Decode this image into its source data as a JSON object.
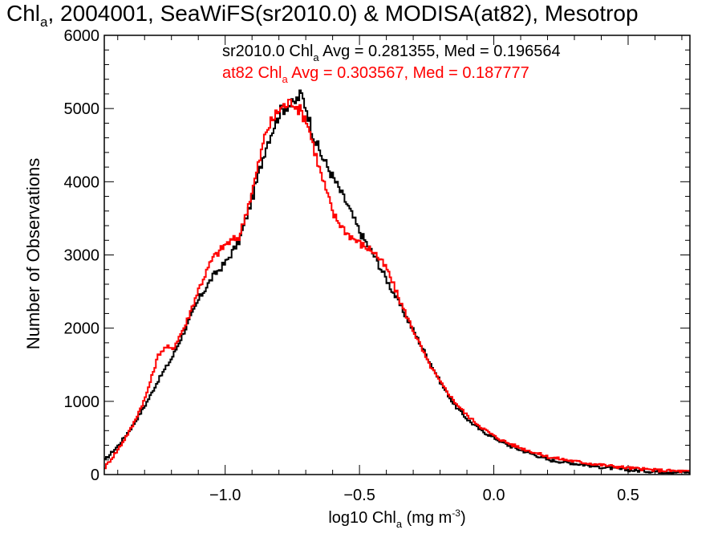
{
  "chart_data": {
    "type": "line",
    "title": {
      "main": "Chl",
      "sub": "a",
      "rest": ", 2004001, SeaWiFS(sr2010.0) & MODISA(at82), Mesotrop"
    },
    "xlabel": {
      "main": "log10 Chl",
      "sub": "a",
      "rest": " (mg m",
      "sup": "-3",
      "end": ")"
    },
    "ylabel": "Number of Observations",
    "xlim": [
      -1.45,
      0.73
    ],
    "ylim": [
      0,
      6000
    ],
    "x_ticks": [
      {
        "value": -1.0,
        "label": "−1.0"
      },
      {
        "value": -0.5,
        "label": "−0.5"
      },
      {
        "value": 0.0,
        "label": "0.0"
      },
      {
        "value": 0.5,
        "label": "0.5"
      }
    ],
    "y_ticks": [
      {
        "value": 0,
        "label": "0"
      },
      {
        "value": 1000,
        "label": "1000"
      },
      {
        "value": 2000,
        "label": "2000"
      },
      {
        "value": 3000,
        "label": "3000"
      },
      {
        "value": 4000,
        "label": "4000"
      },
      {
        "value": 5000,
        "label": "5000"
      },
      {
        "value": 6000,
        "label": "6000"
      }
    ],
    "grid": false,
    "legend_position": "top",
    "series": [
      {
        "name": "sr2010.0",
        "color": "#000000",
        "stats": {
          "main": "sr2010.0 Chl",
          "sub": "a",
          "rest": " Avg = 0.281355, Med = 0.196564"
        },
        "x": [
          -1.45,
          -1.4,
          -1.35,
          -1.3,
          -1.25,
          -1.2,
          -1.15,
          -1.1,
          -1.05,
          -1.0,
          -0.95,
          -0.9,
          -0.85,
          -0.8,
          -0.77,
          -0.75,
          -0.72,
          -0.7,
          -0.68,
          -0.65,
          -0.6,
          -0.55,
          -0.5,
          -0.45,
          -0.4,
          -0.35,
          -0.3,
          -0.25,
          -0.2,
          -0.15,
          -0.1,
          -0.05,
          0.0,
          0.05,
          0.1,
          0.15,
          0.2,
          0.3,
          0.4,
          0.5,
          0.6,
          0.73
        ],
        "y": [
          200,
          400,
          650,
          950,
          1300,
          1600,
          2000,
          2400,
          2700,
          2900,
          3200,
          3800,
          4500,
          4950,
          5050,
          5050,
          5200,
          5000,
          4700,
          4400,
          4050,
          3700,
          3300,
          3000,
          2650,
          2300,
          1950,
          1600,
          1250,
          950,
          750,
          600,
          500,
          400,
          330,
          270,
          200,
          150,
          100,
          60,
          40,
          30
        ]
      },
      {
        "name": "at82",
        "color": "#ff0000",
        "stats": {
          "main": "at82 Chl",
          "sub": "a",
          "rest": " Avg = 0.303567, Med = 0.187777"
        },
        "x": [
          -1.45,
          -1.4,
          -1.35,
          -1.3,
          -1.25,
          -1.22,
          -1.2,
          -1.15,
          -1.1,
          -1.05,
          -1.0,
          -0.95,
          -0.9,
          -0.85,
          -0.8,
          -0.75,
          -0.72,
          -0.7,
          -0.65,
          -0.6,
          -0.55,
          -0.5,
          -0.45,
          -0.4,
          -0.35,
          -0.3,
          -0.25,
          -0.2,
          -0.15,
          -0.1,
          -0.05,
          0.0,
          0.05,
          0.1,
          0.15,
          0.2,
          0.3,
          0.4,
          0.5,
          0.6,
          0.73
        ],
        "y": [
          100,
          350,
          650,
          1050,
          1650,
          1750,
          1700,
          2050,
          2550,
          2950,
          3150,
          3250,
          3900,
          4700,
          5000,
          5100,
          4950,
          4850,
          4150,
          3550,
          3300,
          3150,
          3050,
          2800,
          2350,
          1950,
          1550,
          1250,
          1000,
          800,
          650,
          520,
          430,
          360,
          300,
          240,
          180,
          130,
          90,
          60,
          40
        ]
      }
    ]
  }
}
